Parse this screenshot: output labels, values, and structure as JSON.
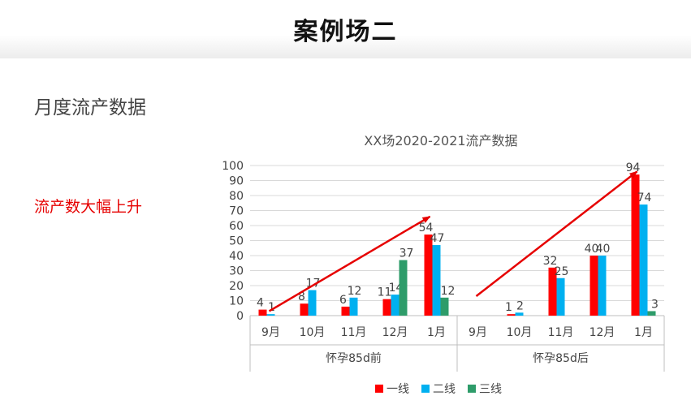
{
  "slide": {
    "title": "案例场二",
    "section_title": "月度流产数据",
    "callout": "流产数大幅上升"
  },
  "colors": {
    "series": [
      "#ff0000",
      "#00b0f0",
      "#2e9c6a"
    ],
    "arrow": "#e60000"
  },
  "chart_data": {
    "type": "bar",
    "title": "XX场2020-2021流产数据",
    "groups": [
      {
        "name": "怀孕85d前",
        "categories": [
          "9月",
          "10月",
          "11月",
          "12月",
          "1月"
        ]
      },
      {
        "name": "怀孕85d后",
        "categories": [
          "9月",
          "10月",
          "11月",
          "12月",
          "1月"
        ]
      }
    ],
    "series": [
      {
        "name": "一线",
        "values": [
          4,
          8,
          6,
          11,
          54,
          null,
          1,
          32,
          40,
          94
        ]
      },
      {
        "name": "二线",
        "values": [
          1,
          17,
          12,
          14,
          47,
          null,
          2,
          25,
          40,
          74
        ]
      },
      {
        "name": "三线",
        "values": [
          null,
          null,
          null,
          37,
          12,
          null,
          null,
          null,
          null,
          3
        ]
      }
    ],
    "ylim": [
      0,
      100
    ],
    "yticks": [
      0,
      10,
      20,
      30,
      40,
      50,
      60,
      70,
      80,
      90,
      100
    ],
    "grid": true,
    "legend_position": "bottom",
    "annotations": [
      {
        "type": "arrow",
        "from": [
          "9月",
          3
        ],
        "to": [
          "1月",
          66
        ],
        "group": 0
      },
      {
        "type": "arrow",
        "from": [
          "9月",
          13
        ],
        "to": [
          "1月",
          96
        ],
        "group": 1
      }
    ]
  }
}
